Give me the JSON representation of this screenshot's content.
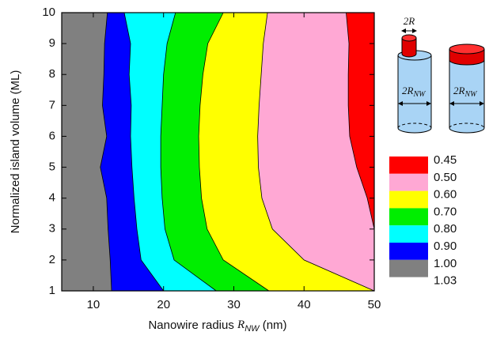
{
  "chart_data": {
    "type": "contour",
    "x_label": {
      "before": "Nanowire radius ",
      "var": "R",
      "sub": "NW",
      "after": " (nm)"
    },
    "y_label": "Normalized island volume  (ML)",
    "xlim": [
      5.5,
      50
    ],
    "xticks": [
      10,
      20,
      30,
      40,
      50
    ],
    "ylim": [
      1,
      10
    ],
    "yticks": [
      1,
      2,
      3,
      4,
      5,
      6,
      7,
      8,
      9,
      10
    ],
    "y_values": [
      1,
      2,
      3,
      4,
      5,
      6,
      7,
      8,
      9,
      10
    ],
    "levels": [
      0.45,
      {
        "value": 0.5,
        "label": "0.50"
      },
      {
        "value": 0.6,
        "label": "0.60"
      },
      {
        "value": 0.7,
        "label": "0.70"
      },
      {
        "value": 0.8,
        "label": "0.80"
      },
      {
        "value": 0.9,
        "label": "0.90"
      },
      {
        "value": 1,
        "label": "1.00"
      },
      1.03
    ],
    "bands": [
      {
        "color": "#ff0000",
        "left_boundary": [
          50,
          50,
          50,
          49,
          47.5,
          46.5,
          46.3,
          46.3,
          46.4,
          46.0
        ]
      },
      {
        "color": "#ffa8d4",
        "left_boundary": [
          50,
          40,
          35.5,
          34,
          33.5,
          33.4,
          33.6,
          33.9,
          34.2,
          34.8
        ]
      },
      {
        "color": "#ffff00",
        "left_boundary": [
          35,
          28.5,
          26.2,
          25.4,
          25.1,
          25.0,
          25.2,
          25.6,
          26.3,
          28.5
        ]
      },
      {
        "color": "#00ee00",
        "left_boundary": [
          27.5,
          21.5,
          20.2,
          19.8,
          19.6,
          19.6,
          19.8,
          20.0,
          20.5,
          21.7
        ]
      },
      {
        "color": "#00ffff",
        "left_boundary": [
          20,
          16.8,
          16.2,
          15.8,
          15.5,
          15.3,
          15.4,
          15.1,
          15.3,
          14.4
        ]
      },
      {
        "color": "#0000ff",
        "left_boundary": [
          12.6,
          12.4,
          12.1,
          11.9,
          11.0,
          11.9,
          11.3,
          11.5,
          11.6,
          12.0
        ]
      },
      {
        "color": "#808080"
      }
    ],
    "annotations": [
      {
        "text": "2R"
      },
      {
        "text": "2R",
        "sub": "NW"
      },
      {
        "text": "2R",
        "sub": "NW"
      }
    ]
  }
}
